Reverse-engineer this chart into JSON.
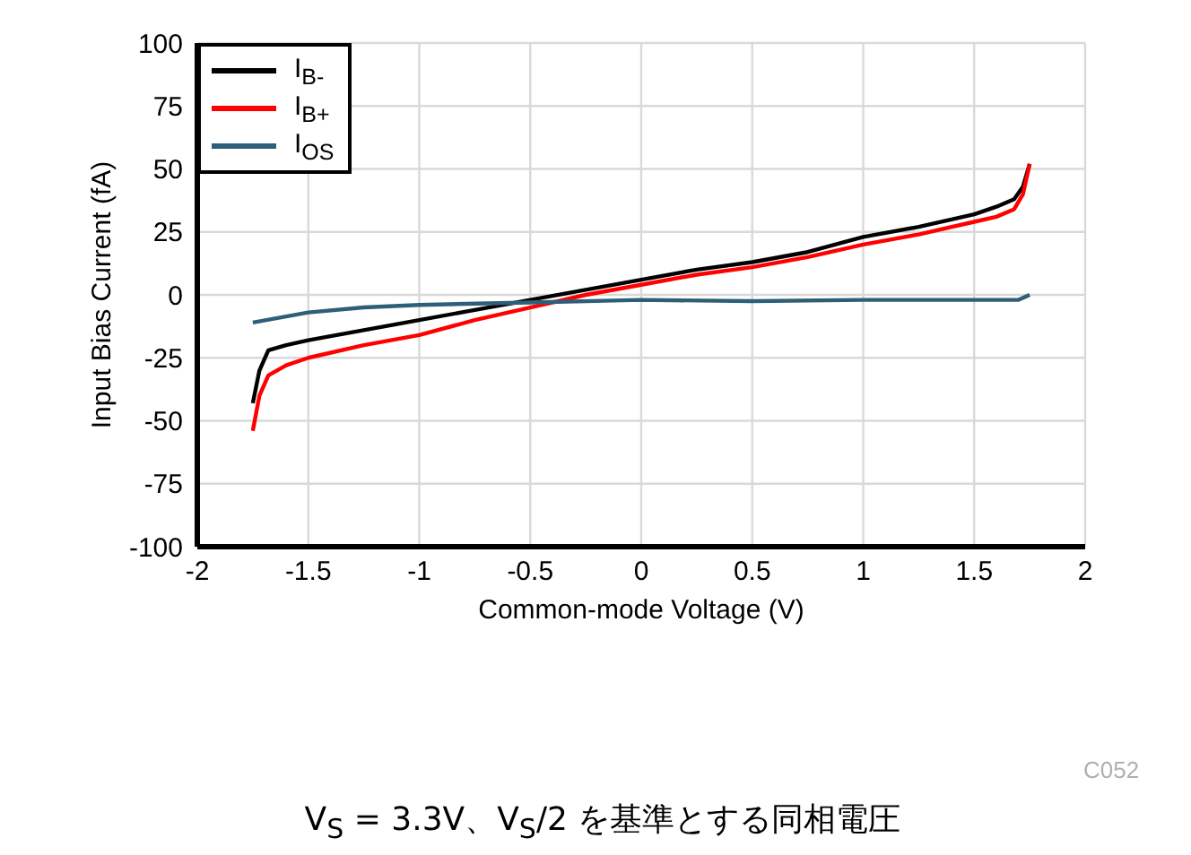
{
  "chart_data": {
    "type": "line",
    "xlabel": "Common-mode Voltage (V)",
    "ylabel": "Input Bias Current (fA)",
    "xlim": [
      -2,
      2
    ],
    "xticks": [
      -2,
      -1.5,
      -1,
      -0.5,
      0,
      0.5,
      1,
      1.5,
      2
    ],
    "ylim": [
      -100,
      100
    ],
    "yticks": [
      -100,
      -75,
      -50,
      -25,
      0,
      25,
      50,
      75,
      100
    ],
    "grid": true,
    "legend": "top left",
    "annotations": [
      "C052",
      "V$_{S}$ = 3.3V、V$_{S}$/2 を基準とする同相電圧"
    ],
    "series": [
      {
        "name": "I$_{B-}$",
        "color": "#000000",
        "x": [
          -1.75,
          -1.72,
          -1.68,
          -1.6,
          -1.5,
          -1.25,
          -1,
          -0.75,
          -0.5,
          -0.25,
          0,
          0.25,
          0.5,
          0.75,
          1,
          1.25,
          1.5,
          1.6,
          1.68,
          1.72,
          1.75
        ],
        "values": [
          -43,
          -30,
          -22,
          -20,
          -18,
          -14,
          -10,
          -6,
          -2,
          2,
          6,
          10,
          13,
          17,
          23,
          27,
          32,
          35,
          38,
          43,
          52
        ]
      },
      {
        "name": "I$_{B+}$",
        "color": "#ff0000",
        "x": [
          -1.75,
          -1.72,
          -1.68,
          -1.6,
          -1.5,
          -1.25,
          -1,
          -0.75,
          -0.5,
          -0.25,
          0,
          0.25,
          0.5,
          0.75,
          1,
          1.25,
          1.5,
          1.6,
          1.68,
          1.72,
          1.75
        ],
        "values": [
          -54,
          -40,
          -32,
          -28,
          -25,
          -20,
          -16,
          -10,
          -5,
          0,
          4,
          8,
          11,
          15,
          20,
          24,
          29,
          31,
          34,
          40,
          52
        ]
      },
      {
        "name": "I$_{OS}$",
        "color": "#2e5f78",
        "x": [
          -1.75,
          -1.5,
          -1.25,
          -1,
          -0.5,
          0,
          0.5,
          1,
          1.5,
          1.7,
          1.75
        ],
        "values": [
          -11,
          -7,
          -5,
          -4,
          -3,
          -2,
          -2.5,
          -2,
          -2,
          -2,
          0
        ]
      }
    ]
  }
}
